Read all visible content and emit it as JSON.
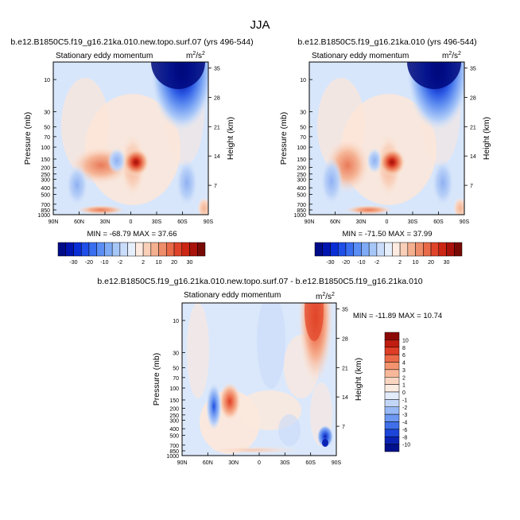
{
  "figure_title": "JJA",
  "chart_data": [
    {
      "type": "heatmap",
      "title": "b.e12.B1850C5.f19_g16.21ka.010.new.topo.surf.07 (yrs 496-544)",
      "subtitle": "Stationary eddy momentum",
      "units_base": "m",
      "units_sup1": "2",
      "units_mid": "/s",
      "units_sup2": "2",
      "xlabel": "",
      "ylabel": "Pressure (mb)",
      "ylabel_right": "Height (km)",
      "x_ticks": [
        "90N",
        "60N",
        "30N",
        "0",
        "30S",
        "60S",
        "90S"
      ],
      "x_values": [
        90,
        60,
        30,
        0,
        -30,
        -60,
        -90
      ],
      "y_ticks": [
        "10",
        "30",
        "50",
        "70",
        "100",
        "150",
        "200",
        "250",
        "300",
        "400",
        "500",
        "700",
        "850",
        "1000"
      ],
      "y_values": [
        10,
        30,
        50,
        70,
        100,
        150,
        200,
        250,
        300,
        400,
        500,
        700,
        850,
        1000
      ],
      "y_right_ticks": [
        "35",
        "28",
        "21",
        "14",
        "7"
      ],
      "min_max_label": "MIN = -68.79   MAX =  37.66",
      "features": [
        {
          "lat": -58,
          "p": 8,
          "value": -68.79
        },
        {
          "lat": 2,
          "p": 160,
          "value": 37.66
        },
        {
          "lat": 38,
          "p": 200,
          "value": 12
        },
        {
          "lat": 8,
          "p": 70,
          "value": 3
        }
      ]
    },
    {
      "type": "heatmap",
      "title": "b.e12.B1850C5.f19_g16.21ka.010 (yrs 496-544)",
      "subtitle": "Stationary eddy momentum",
      "units_base": "m",
      "units_sup1": "2",
      "units_mid": "/s",
      "units_sup2": "2",
      "xlabel": "",
      "ylabel": "Pressure (mb)",
      "ylabel_right": "Height (km)",
      "x_ticks": [
        "90N",
        "60N",
        "30N",
        "0",
        "30S",
        "60S",
        "90S"
      ],
      "x_values": [
        90,
        60,
        30,
        0,
        -30,
        -60,
        -90
      ],
      "y_ticks": [
        "10",
        "30",
        "50",
        "70",
        "100",
        "150",
        "200",
        "250",
        "300",
        "400",
        "500",
        "700",
        "850",
        "1000"
      ],
      "y_values": [
        10,
        30,
        50,
        70,
        100,
        150,
        200,
        250,
        300,
        400,
        500,
        700,
        850,
        1000
      ],
      "y_right_ticks": [
        "35",
        "28",
        "21",
        "14",
        "7"
      ],
      "min_max_label": "MIN = -71.50   MAX =  37.99",
      "features": [
        {
          "lat": -58,
          "p": 8,
          "value": -71.5
        },
        {
          "lat": 2,
          "p": 160,
          "value": 37.99
        },
        {
          "lat": 45,
          "p": 200,
          "value": 12
        },
        {
          "lat": 8,
          "p": 70,
          "value": 3
        }
      ]
    },
    {
      "type": "heatmap",
      "title": "b.e12.B1850C5.f19_g16.21ka.010.new.topo.surf.07 - b.e12.B1850C5.f19_g16.21ka.010",
      "subtitle": "Stationary eddy momentum",
      "units_base": "m",
      "units_sup1": "2",
      "units_mid": "/s",
      "units_sup2": "2",
      "xlabel": "",
      "ylabel": "Pressure (mb)",
      "ylabel_right": "Height (km)",
      "x_ticks": [
        "90N",
        "60N",
        "30N",
        "0",
        "30S",
        "60S",
        "90S"
      ],
      "x_values": [
        90,
        60,
        30,
        0,
        -30,
        -60,
        -90
      ],
      "y_ticks": [
        "10",
        "30",
        "50",
        "70",
        "100",
        "150",
        "200",
        "250",
        "300",
        "400",
        "500",
        "700",
        "850",
        "1000"
      ],
      "y_values": [
        10,
        30,
        50,
        70,
        100,
        150,
        200,
        250,
        300,
        400,
        500,
        700,
        850,
        1000
      ],
      "y_right_ticks": [
        "35",
        "28",
        "21",
        "14",
        "7"
      ],
      "min_max_label": "MIN = -11.89   MAX =  10.74",
      "features": [
        {
          "lat": -57,
          "p": 10,
          "value": 10.74
        },
        {
          "lat": 38,
          "p": 170,
          "value": 6
        },
        {
          "lat": 55,
          "p": 180,
          "value": -4
        },
        {
          "lat": -78,
          "p": 760,
          "value": -11.89
        }
      ]
    }
  ],
  "colorbar_main": {
    "labels": [
      "-30",
      "-20",
      "-10",
      "-2",
      "2",
      "10",
      "20",
      "30"
    ],
    "colors": [
      "#000b88",
      "#0014b0",
      "#0a2ed6",
      "#1f4ee8",
      "#3a6ef0",
      "#5a8ef4",
      "#7fabf6",
      "#a6c6f8",
      "#c9dcfa",
      "#e6effc",
      "#fdeae0",
      "#f9cfb8",
      "#f4af8f",
      "#ee8d6a",
      "#e86a49",
      "#df442b",
      "#cc2514",
      "#a8120a",
      "#780a05"
    ]
  },
  "colorbar_diff": {
    "labels": [
      "10",
      "8",
      "6",
      "4",
      "3",
      "2",
      "1",
      "0",
      "-1",
      "-2",
      "-3",
      "-4",
      "-6",
      "-8",
      "-10"
    ],
    "colors": [
      "#8c0a06",
      "#bf1d10",
      "#de3e25",
      "#ec6a48",
      "#f3946f",
      "#f7b899",
      "#fad6c2",
      "#fbece2",
      "#e3ecfb",
      "#c2d6f8",
      "#98b9f5",
      "#6d98f1",
      "#3f6fe9",
      "#1c45d8",
      "#0a22b4",
      "#000f8c"
    ]
  }
}
